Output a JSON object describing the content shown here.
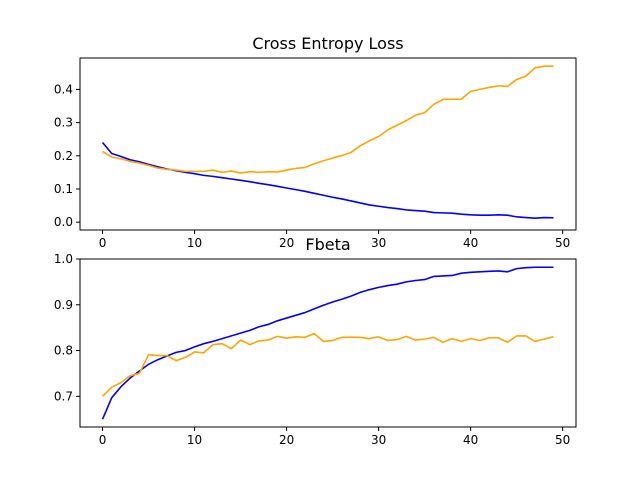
{
  "chart_data": [
    {
      "type": "line",
      "title": "Cross Entropy Loss",
      "xlabel": "",
      "ylabel": "",
      "xlim": [
        -2.45,
        51.45
      ],
      "ylim": [
        -0.0236,
        0.4946
      ],
      "xticks": [
        0,
        10,
        20,
        30,
        40,
        50
      ],
      "xtick_labels": [
        "0",
        "10",
        "20",
        "30",
        "40",
        "50"
      ],
      "yticks": [
        0.0,
        0.1,
        0.2,
        0.3,
        0.4
      ],
      "ytick_labels": [
        "0.0",
        "0.1",
        "0.2",
        "0.3",
        "0.4"
      ],
      "grid": false,
      "x": [
        0,
        1,
        2,
        3,
        4,
        5,
        6,
        7,
        8,
        9,
        10,
        11,
        12,
        13,
        14,
        15,
        16,
        17,
        18,
        19,
        20,
        21,
        22,
        23,
        24,
        25,
        26,
        27,
        28,
        29,
        30,
        31,
        32,
        33,
        34,
        35,
        36,
        37,
        38,
        39,
        40,
        41,
        42,
        43,
        44,
        45,
        46,
        47,
        48,
        49
      ],
      "series": [
        {
          "color": "#0000ff",
          "values": [
            0.24,
            0.207,
            0.198,
            0.188,
            0.182,
            0.174,
            0.167,
            0.16,
            0.155,
            0.15,
            0.146,
            0.141,
            0.138,
            0.134,
            0.13,
            0.126,
            0.122,
            0.117,
            0.113,
            0.108,
            0.103,
            0.098,
            0.093,
            0.087,
            0.081,
            0.075,
            0.07,
            0.064,
            0.058,
            0.052,
            0.048,
            0.044,
            0.041,
            0.037,
            0.035,
            0.033,
            0.029,
            0.028,
            0.027,
            0.024,
            0.022,
            0.021,
            0.021,
            0.022,
            0.021,
            0.016,
            0.014,
            0.012,
            0.014,
            0.013
          ]
        },
        {
          "color": "#ffa500",
          "values": [
            0.213,
            0.196,
            0.191,
            0.183,
            0.178,
            0.171,
            0.163,
            0.159,
            0.157,
            0.153,
            0.153,
            0.153,
            0.157,
            0.15,
            0.154,
            0.148,
            0.152,
            0.15,
            0.152,
            0.151,
            0.157,
            0.162,
            0.165,
            0.176,
            0.185,
            0.193,
            0.201,
            0.21,
            0.23,
            0.245,
            0.258,
            0.278,
            0.292,
            0.306,
            0.322,
            0.33,
            0.355,
            0.37,
            0.37,
            0.371,
            0.394,
            0.4,
            0.406,
            0.411,
            0.409,
            0.43,
            0.44,
            0.465,
            0.47,
            0.47
          ]
        }
      ]
    },
    {
      "type": "line",
      "title": "Fbeta",
      "xlabel": "",
      "ylabel": "",
      "xlim": [
        -2.45,
        51.45
      ],
      "ylim": [
        0.633,
        1.0
      ],
      "xticks": [
        0,
        10,
        20,
        30,
        40,
        50
      ],
      "xtick_labels": [
        "0",
        "10",
        "20",
        "30",
        "40",
        "50"
      ],
      "yticks": [
        0.7,
        0.8,
        0.9,
        1.0
      ],
      "ytick_labels": [
        "0.7",
        "0.8",
        "0.9",
        "1.0"
      ],
      "grid": false,
      "x": [
        0,
        1,
        2,
        3,
        4,
        5,
        6,
        7,
        8,
        9,
        10,
        11,
        12,
        13,
        14,
        15,
        16,
        17,
        18,
        19,
        20,
        21,
        22,
        23,
        24,
        25,
        26,
        27,
        28,
        29,
        30,
        31,
        32,
        33,
        34,
        35,
        36,
        37,
        38,
        39,
        40,
        41,
        42,
        43,
        44,
        45,
        46,
        47,
        48,
        49
      ],
      "series": [
        {
          "color": "#0000ff",
          "values": [
            0.65,
            0.697,
            0.721,
            0.74,
            0.755,
            0.77,
            0.78,
            0.788,
            0.796,
            0.8,
            0.808,
            0.815,
            0.82,
            0.826,
            0.832,
            0.838,
            0.844,
            0.852,
            0.857,
            0.865,
            0.871,
            0.877,
            0.883,
            0.891,
            0.899,
            0.906,
            0.912,
            0.919,
            0.927,
            0.933,
            0.938,
            0.942,
            0.945,
            0.95,
            0.953,
            0.955,
            0.962,
            0.963,
            0.964,
            0.969,
            0.971,
            0.972,
            0.973,
            0.974,
            0.972,
            0.979,
            0.981,
            0.982,
            0.982,
            0.982
          ]
        },
        {
          "color": "#ffa500",
          "values": [
            0.7,
            0.72,
            0.73,
            0.745,
            0.75,
            0.791,
            0.789,
            0.789,
            0.778,
            0.785,
            0.797,
            0.795,
            0.813,
            0.815,
            0.804,
            0.823,
            0.813,
            0.821,
            0.823,
            0.831,
            0.827,
            0.83,
            0.829,
            0.837,
            0.82,
            0.822,
            0.829,
            0.829,
            0.829,
            0.826,
            0.83,
            0.822,
            0.824,
            0.831,
            0.823,
            0.825,
            0.829,
            0.818,
            0.826,
            0.82,
            0.826,
            0.822,
            0.828,
            0.828,
            0.818,
            0.832,
            0.832,
            0.82,
            0.825,
            0.83
          ]
        }
      ]
    }
  ]
}
